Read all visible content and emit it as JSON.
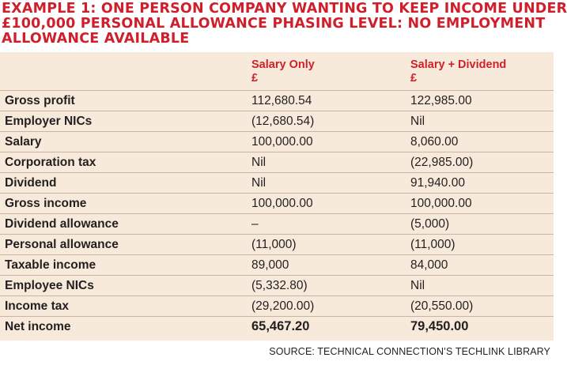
{
  "title_lines": [
    "EXAMPLE 1: ONE PERSON COMPANY WANTING TO KEEP INCOME UNDER",
    "£100,000 PERSONAL ALLOWANCE PHASING LEVEL: NO EMPLOYMENT",
    "ALLOWANCE AVAILABLE"
  ],
  "table": {
    "columns": [
      {
        "name": "Salary Only",
        "unit": "£"
      },
      {
        "name": "Salary + Dividend",
        "unit": "£"
      }
    ],
    "rows": [
      {
        "label": "Gross profit",
        "salary_only": "112,680.54",
        "salary_dividend": "122,985.00"
      },
      {
        "label": "Employer NICs",
        "salary_only": "(12,680.54)",
        "salary_dividend": "Nil"
      },
      {
        "label": "Salary",
        "salary_only": "100,000.00",
        "salary_dividend": "8,060.00"
      },
      {
        "label": "Corporation tax",
        "salary_only": "Nil",
        "salary_dividend": "(22,985.00)"
      },
      {
        "label": "Dividend",
        "salary_only": "Nil",
        "salary_dividend": "91,940.00"
      },
      {
        "label": "Gross income",
        "salary_only": "100,000.00",
        "salary_dividend": "100,000.00"
      },
      {
        "label": "Dividend allowance",
        "salary_only": "–",
        "salary_dividend": "(5,000)"
      },
      {
        "label": "Personal allowance",
        "salary_only": "(11,000)",
        "salary_dividend": "(11,000)"
      },
      {
        "label": "Taxable income",
        "salary_only": "89,000",
        "salary_dividend": "84,000"
      },
      {
        "label": "Employee NICs",
        "salary_only": "(5,332.80)",
        "salary_dividend": "Nil"
      },
      {
        "label": "Income tax",
        "salary_only": "(29,200.00)",
        "salary_dividend": "(20,550.00)"
      },
      {
        "label": "Net income",
        "salary_only": "65,467.20",
        "salary_dividend": "79,450.00"
      }
    ]
  },
  "source": "SOURCE: TECHNICAL CONNECTION’S TECHLINK LIBRARY",
  "colors": {
    "accent_red": "#d01f2b",
    "panel_beige": "#f7eadb",
    "rule": "#c6b6a4",
    "text": "#231f20"
  }
}
